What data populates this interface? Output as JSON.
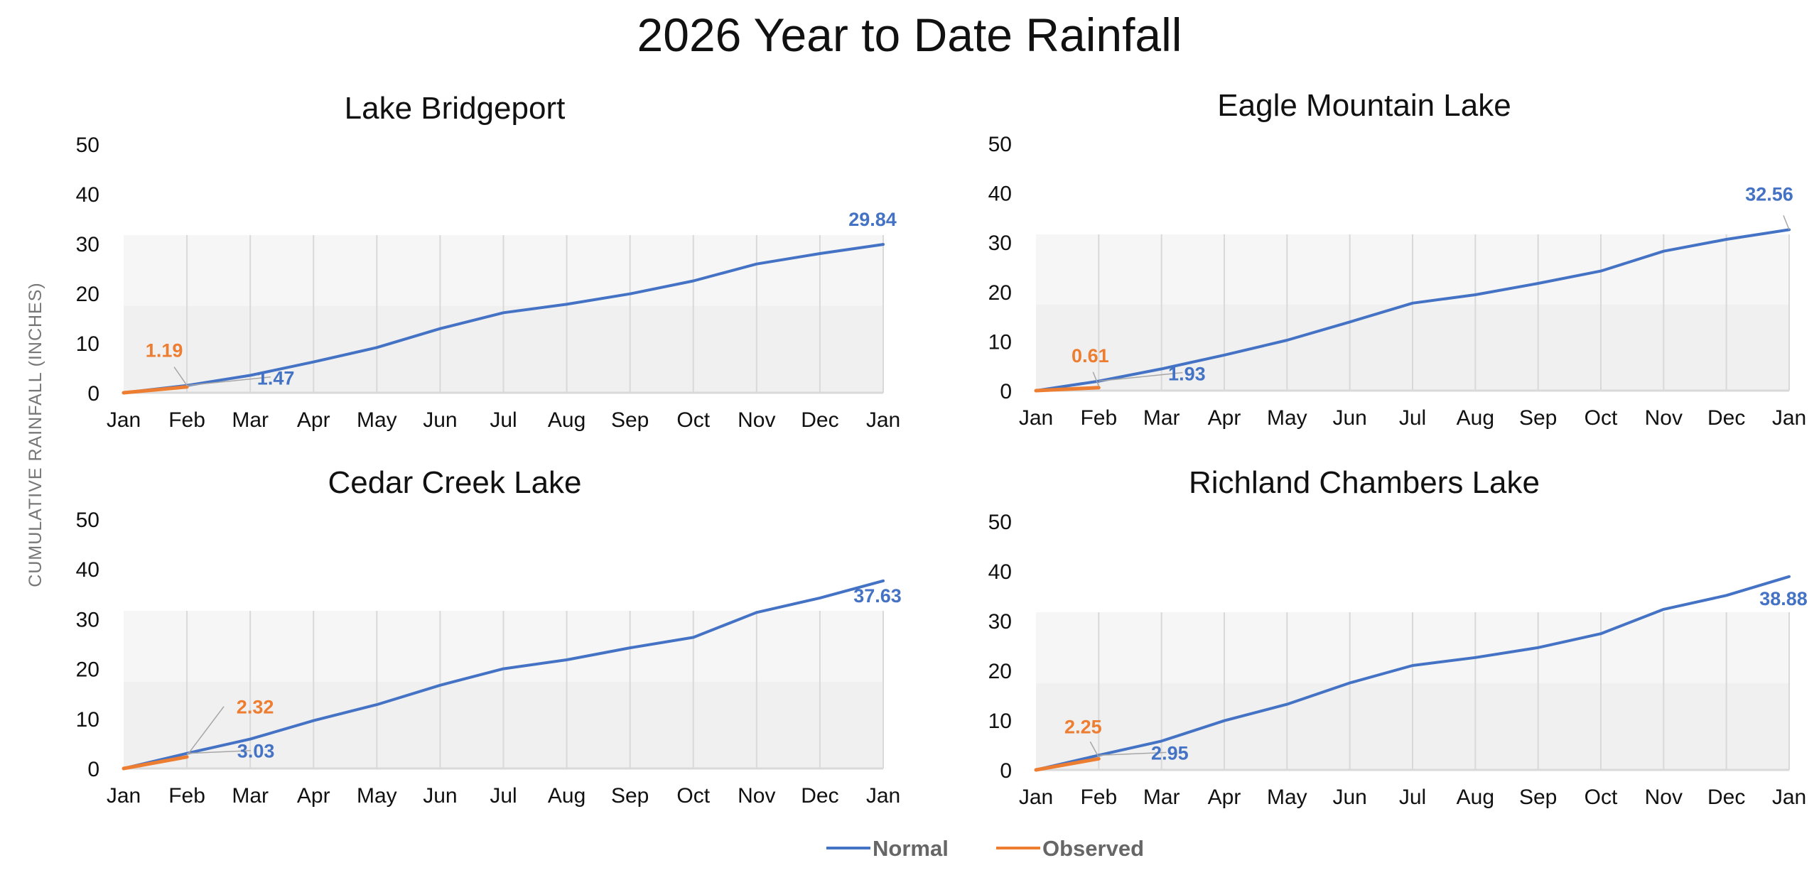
{
  "chart_data": {
    "type": "line",
    "title": "2026 Year to Date Rainfall",
    "ylabel": "CUMULATIVE RAINFALL (INCHES)",
    "ylim": [
      0,
      50
    ],
    "yticks": [
      "0",
      "10",
      "20",
      "30",
      "40",
      "50"
    ],
    "categories": [
      "Jan",
      "Feb",
      "Mar",
      "Apr",
      "May",
      "Jun",
      "Jul",
      "Aug",
      "Sep",
      "Oct",
      "Nov",
      "Dec",
      "Jan"
    ],
    "legend": {
      "placement": "bottom",
      "items": [
        "Normal",
        "Observed"
      ]
    },
    "colors": {
      "normal": "#4472C4",
      "observed": "#ED7D31"
    },
    "grid": "vertical",
    "panels": [
      {
        "title": "Lake Bridgeport",
        "series": [
          {
            "name": "Normal",
            "values": [
              0,
              1.47,
              3.5,
              6.2,
              9.1,
              12.9,
              16.1,
              17.8,
              19.9,
              22.5,
              25.9,
              28.0,
              29.84
            ]
          },
          {
            "name": "Observed",
            "values": [
              0,
              1.19
            ]
          }
        ],
        "labels": {
          "normal_feb": "1.47",
          "observed_feb": "1.19",
          "normal_end": "29.84"
        }
      },
      {
        "title": "Eagle Mountain Lake",
        "series": [
          {
            "name": "Normal",
            "values": [
              0,
              1.93,
              4.4,
              7.2,
              10.2,
              13.9,
              17.7,
              19.4,
              21.7,
              24.2,
              28.2,
              30.6,
              32.56
            ]
          },
          {
            "name": "Observed",
            "values": [
              0,
              0.61
            ]
          }
        ],
        "labels": {
          "normal_feb": "1.93",
          "observed_feb": "0.61",
          "normal_end": "32.56"
        }
      },
      {
        "title": "Cedar Creek Lake",
        "series": [
          {
            "name": "Normal",
            "values": [
              0,
              3.03,
              5.9,
              9.6,
              12.8,
              16.7,
              20.0,
              21.8,
              24.2,
              26.3,
              31.3,
              34.2,
              37.63
            ]
          },
          {
            "name": "Observed",
            "values": [
              0,
              2.32
            ]
          }
        ],
        "labels": {
          "normal_feb": "3.03",
          "observed_feb": "2.32",
          "normal_end": "37.63"
        }
      },
      {
        "title": "Richland Chambers Lake",
        "series": [
          {
            "name": "Normal",
            "values": [
              0,
              2.95,
              5.8,
              9.9,
              13.2,
              17.5,
              21.0,
              22.6,
              24.6,
              27.4,
              32.3,
              35.1,
              38.88
            ]
          },
          {
            "name": "Observed",
            "values": [
              0,
              2.25
            ]
          }
        ],
        "labels": {
          "normal_feb": "2.95",
          "observed_feb": "2.25",
          "normal_end": "38.88"
        }
      }
    ]
  }
}
